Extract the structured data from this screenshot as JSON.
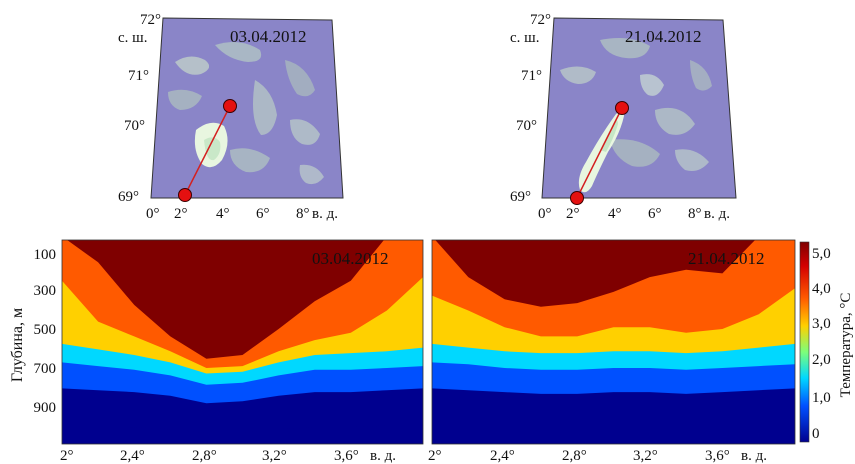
{
  "maps": [
    {
      "date": "03.04.2012",
      "lat_ticks": [
        "72°",
        "71°",
        "70°",
        "69°"
      ],
      "lat_unit": "с. ш.",
      "lon_ticks": [
        "0°",
        "2°",
        "4°",
        "6°",
        "8°"
      ],
      "lon_unit": "в. д."
    },
    {
      "date": "21.04.2012",
      "lat_ticks": [
        "72°",
        "71°",
        "70°",
        "69°"
      ],
      "lat_unit": "с. ш.",
      "lon_ticks": [
        "0°",
        "2°",
        "4°",
        "6°",
        "8°"
      ],
      "lon_unit": "в. д."
    }
  ],
  "sections": [
    {
      "date": "03.04.2012",
      "ylabel": "Глубина, м"
    },
    {
      "date": "21.04.2012"
    }
  ],
  "x_ticks": [
    "2°",
    "2,4°",
    "2,8°",
    "3,2°",
    "3,6°"
  ],
  "x_unit": "в. д.",
  "y_ticks": [
    "100",
    "300",
    "500",
    "700",
    "900"
  ],
  "colorbar": {
    "label": "Температура, °С",
    "ticks": [
      "5,0",
      "4,0",
      "3,0",
      "2,0",
      "1,0",
      "0"
    ]
  },
  "chart_data": {
    "type": "heatmap",
    "xlabel": "",
    "ylabel": "Глубина, м",
    "x_range": [
      2.0,
      4.0
    ],
    "y_range": [
      0,
      1100
    ],
    "colorbar_range": [
      0,
      5.3
    ],
    "section_line": {
      "start": {
        "lon": 2.1,
        "lat": 69.0
      },
      "end": {
        "lon": 4.3,
        "lat": 70.35
      }
    },
    "series": [
      {
        "name": "03.04.2012",
        "lon": [
          2.0,
          2.2,
          2.4,
          2.6,
          2.8,
          3.0,
          3.2,
          3.4,
          3.6,
          3.8,
          4.0
        ],
        "isotherm_depths": [
          {
            "t": 5.0,
            "depth": [
              null,
              120,
              350,
              520,
              640,
              620,
              480,
              330,
              220,
              null,
              null
            ]
          },
          {
            "t": 4.0,
            "depth": [
              220,
              440,
              520,
              600,
              690,
              680,
              600,
              540,
              500,
              380,
              200
            ]
          },
          {
            "t": 3.0,
            "depth": [
              560,
              590,
              620,
              660,
              720,
              710,
              660,
              620,
              610,
              600,
              580
            ]
          },
          {
            "t": 2.0,
            "depth": [
              660,
              680,
              700,
              730,
              780,
              770,
              730,
              700,
              700,
              690,
              680
            ]
          },
          {
            "t": 1.0,
            "depth": [
              800,
              810,
              820,
              840,
              880,
              870,
              840,
              820,
              820,
              810,
              800
            ]
          },
          {
            "t": 0.0,
            "depth": [
              1000,
              1000,
              1010,
              1020,
              1040,
              1040,
              1020,
              1010,
              1010,
              1000,
              1000
            ]
          }
        ]
      },
      {
        "name": "21.04.2012",
        "lon": [
          2.0,
          2.2,
          2.4,
          2.6,
          2.8,
          3.0,
          3.2,
          3.4,
          3.6,
          3.8,
          4.0
        ],
        "isotherm_depths": [
          {
            "t": 5.0,
            "depth": [
              null,
              200,
              320,
              360,
              340,
              280,
              200,
              160,
              180,
              null,
              null
            ]
          },
          {
            "t": 4.0,
            "depth": [
              300,
              380,
              470,
              520,
              520,
              470,
              470,
              500,
              480,
              400,
              260
            ]
          },
          {
            "t": 3.0,
            "depth": [
              560,
              580,
              600,
              610,
              610,
              600,
              600,
              610,
              600,
              580,
              560
            ]
          },
          {
            "t": 2.0,
            "depth": [
              660,
              670,
              690,
              700,
              700,
              690,
              690,
              700,
              690,
              680,
              670
            ]
          },
          {
            "t": 1.0,
            "depth": [
              800,
              810,
              820,
              830,
              830,
              820,
              820,
              830,
              820,
              810,
              800
            ]
          },
          {
            "t": 0.0,
            "depth": [
              1000,
              1000,
              1010,
              1010,
              1010,
              1010,
              1010,
              1010,
              1010,
              1000,
              1000
            ]
          }
        ]
      }
    ]
  }
}
